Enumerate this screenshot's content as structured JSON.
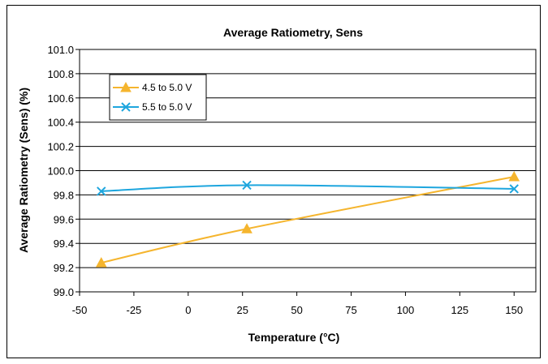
{
  "chart_data": {
    "type": "line",
    "title": "Average Ratiometry, Sens",
    "xlabel": "Temperature (°C)",
    "ylabel": "Average Ratiometry (Sens) (%)",
    "xlim": [
      -50,
      160
    ],
    "ylim": [
      99.0,
      101.0
    ],
    "xticks": [
      "-50",
      "-25",
      "0",
      "25",
      "50",
      "75",
      "100",
      "125",
      "150"
    ],
    "yticks": [
      "99.0",
      "99.2",
      "99.4",
      "99.6",
      "99.8",
      "100.0",
      "100.2",
      "100.4",
      "100.6",
      "100.8",
      "101.0"
    ],
    "grid": "horizontal",
    "legend_position": "top-left",
    "series": [
      {
        "name": "4.5 to 5.0 V",
        "color": "#F5B52E",
        "marker": "triangle",
        "x": [
          -40,
          27,
          150
        ],
        "y": [
          99.24,
          99.52,
          99.95
        ]
      },
      {
        "name": "5.5 to 5.0 V",
        "color": "#1EA6DE",
        "marker": "x",
        "x": [
          -40,
          27,
          150
        ],
        "y": [
          99.83,
          99.88,
          99.85
        ]
      }
    ]
  }
}
